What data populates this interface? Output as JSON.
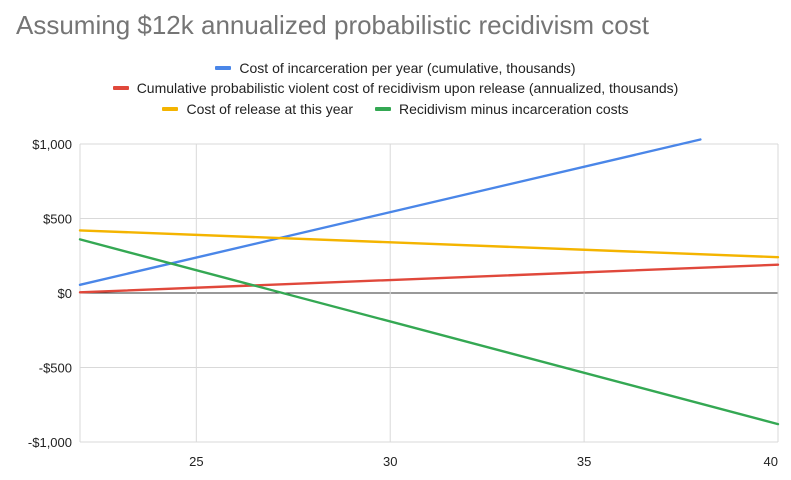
{
  "chart_data": {
    "type": "line",
    "title": "Assuming $12k annualized probabilistic recidivism cost",
    "xlabel": "",
    "ylabel": "",
    "xlim": [
      22,
      40
    ],
    "ylim": [
      -1000,
      1000
    ],
    "x_ticks": [
      25,
      30,
      35,
      40
    ],
    "x_tick_labels": [
      "25",
      "30",
      "35",
      "40"
    ],
    "y_ticks": [
      1000,
      500,
      0,
      -500,
      -1000
    ],
    "y_tick_labels": [
      "$1,000",
      "$500",
      "$0",
      "-$500",
      "-$1,000"
    ],
    "grid": true,
    "legend_position": "top",
    "series": [
      {
        "name": "Cost of incarceration per year (cumulative, thousands)",
        "color": "#4a86e8",
        "x": [
          22,
          38
        ],
        "values": [
          55,
          1030
        ]
      },
      {
        "name": "Cumulative probabilistic violent cost of recidivism upon release (annualized, thousands)",
        "color": "#e0483b",
        "x": [
          22,
          40
        ],
        "values": [
          5,
          190
        ]
      },
      {
        "name": "Cost of release at this year",
        "color": "#f4b400",
        "x": [
          22,
          40
        ],
        "values": [
          420,
          240
        ]
      },
      {
        "name": "Recidivism minus incarceration costs",
        "color": "#34a853",
        "x": [
          22,
          40
        ],
        "values": [
          360,
          -880
        ]
      }
    ]
  }
}
